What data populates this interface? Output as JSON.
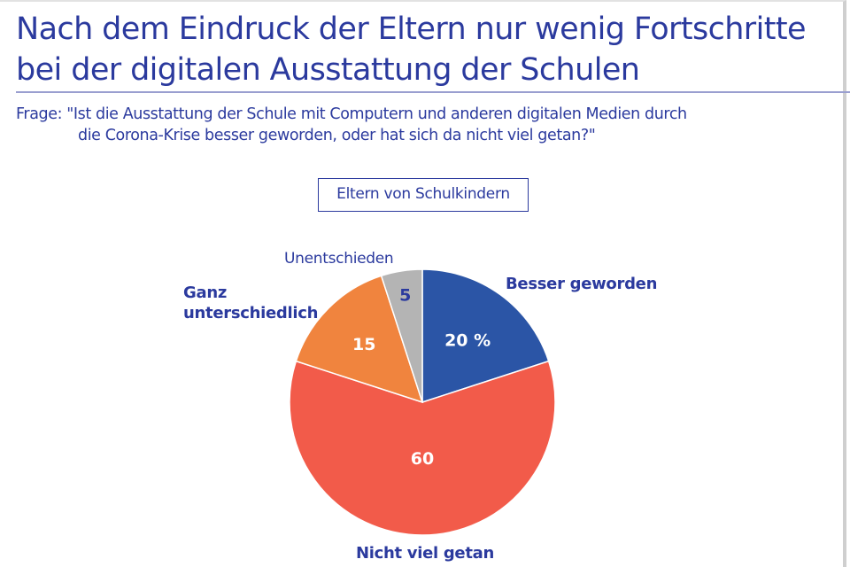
{
  "header": {
    "title_lines": [
      "Nach dem Eindruck der Eltern nur wenig Fortschritte",
      "bei der digitalen Ausstattung der Schulen"
    ],
    "question_lines": [
      "Frage: \"Ist die Ausstattung der Schule mit Computern und anderen digitalen Medien durch",
      "die Corona-Krise besser geworden, oder hat sich da nicht viel getan?\""
    ]
  },
  "badge": "Eltern von Schulkindern",
  "colors": {
    "text": "#2b3a9e",
    "besser": "#2b55a6",
    "nicht_viel": "#f25b4a",
    "ganz_unterschiedlich": "#f0843e",
    "unentschieden": "#b4b4b4"
  },
  "chart_data": {
    "type": "pie",
    "title": "Nach dem Eindruck der Eltern nur wenig Fortschritte bei der digitalen Ausstattung der Schulen",
    "subtitle": "Eltern von Schulkindern",
    "unit": "%",
    "start_angle": "12 o'clock",
    "direction": "clockwise",
    "slices": [
      {
        "label": "Besser geworden",
        "value": 20,
        "value_label": "20 %",
        "color": "#2b55a6",
        "value_color": "#ffffff"
      },
      {
        "label": "Nicht viel getan",
        "value": 60,
        "value_label": "60",
        "color": "#f25b4a",
        "value_color": "#ffffff"
      },
      {
        "label": "Ganz unterschiedlich",
        "value": 15,
        "value_label": "15",
        "color": "#f0843e",
        "value_color": "#ffffff"
      },
      {
        "label": "Unentschieden",
        "value": 5,
        "value_label": "5",
        "color": "#b4b4b4",
        "value_color": "#2b3a9e"
      }
    ]
  },
  "labels": {
    "besser": "Besser geworden",
    "nicht_viel": "Nicht viel getan",
    "ganz_1": "Ganz",
    "ganz_2": "unterschiedlich",
    "unentschieden": "Unentschieden"
  }
}
